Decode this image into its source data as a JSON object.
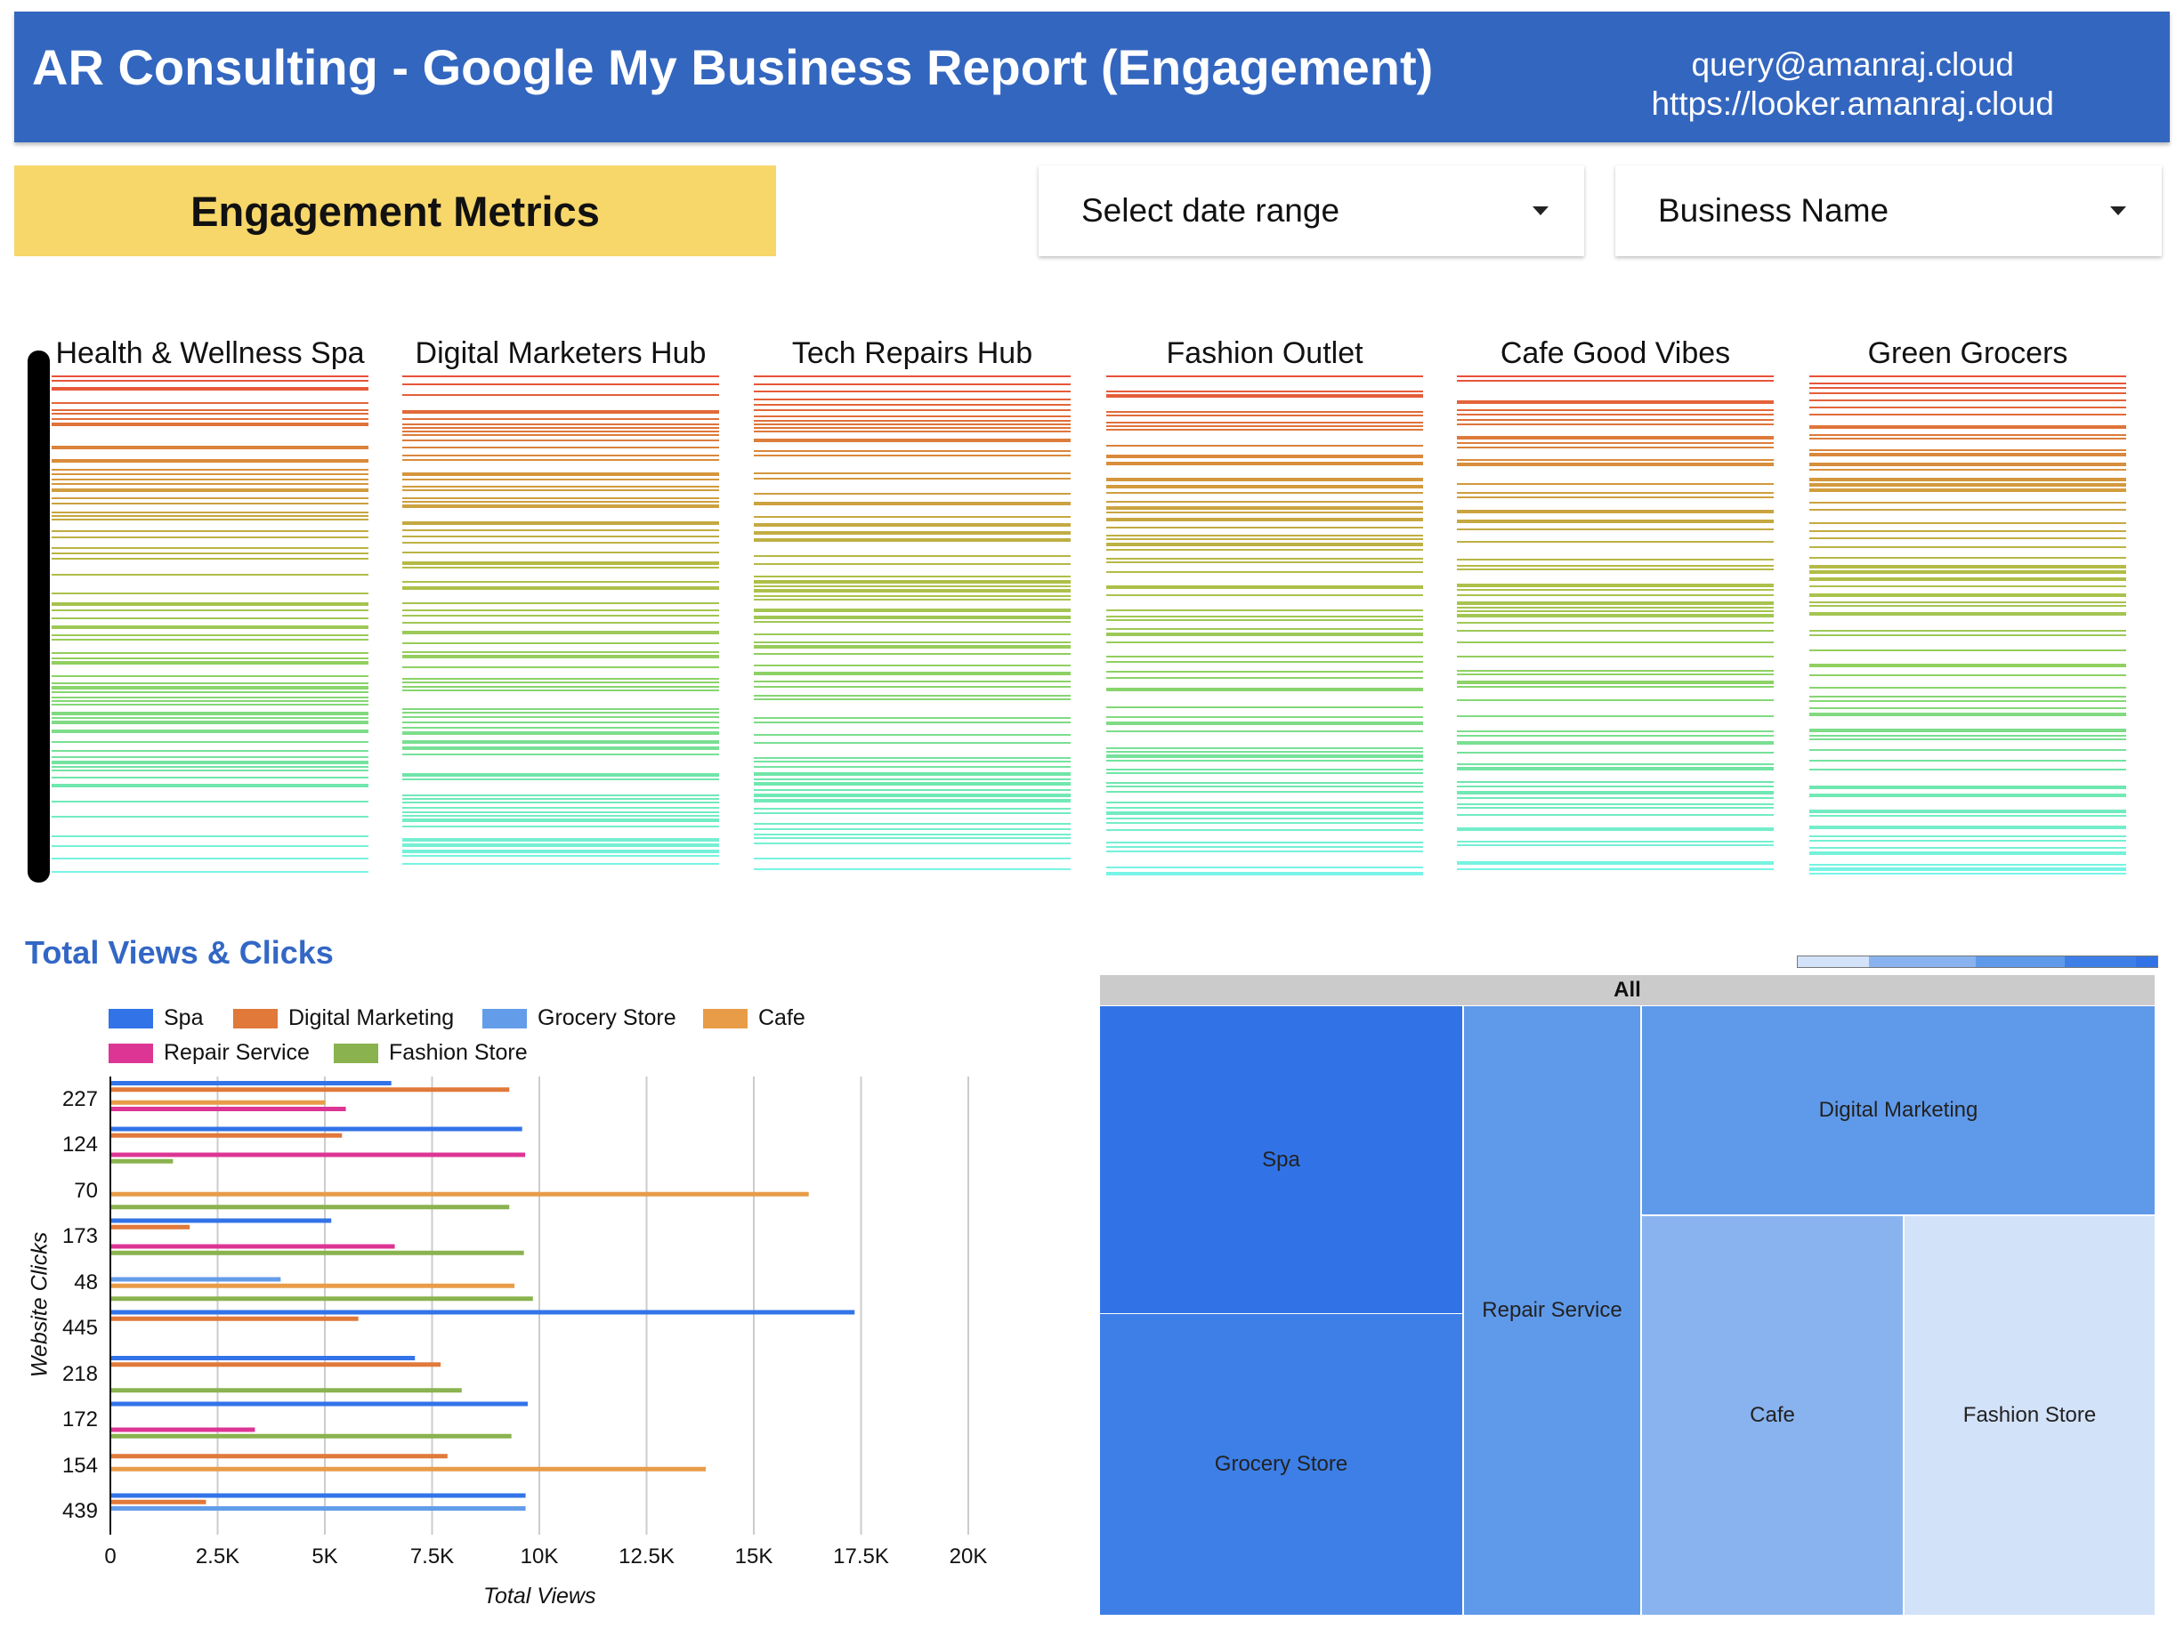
{
  "header": {
    "title": "AR Consulting - Google My Business Report (Engagement)",
    "email": "query@amanraj.cloud",
    "url": "https://looker.amanraj.cloud"
  },
  "section_label": "Engagement Metrics",
  "filters": {
    "date_range": "Select date range",
    "business_name": "Business Name"
  },
  "strip_charts": [
    "Health & Wellness Spa",
    "Digital Marketers Hub",
    "Tech Repairs Hub",
    "Fashion Outlet",
    "Cafe Good Vibes",
    "Green Grocers"
  ],
  "chart_data": [
    {
      "type": "bar",
      "orientation": "horizontal",
      "title": "Total Views & Clicks",
      "xlabel": "Total Views",
      "ylabel": "Website Clicks",
      "xlim": [
        0,
        20000
      ],
      "xticks": [
        "0",
        "2.5K",
        "5K",
        "7.5K",
        "10K",
        "12.5K",
        "15K",
        "17.5K",
        "20K"
      ],
      "grid": true,
      "legend": "top",
      "categories": [
        "227",
        "124",
        "70",
        "173",
        "48",
        "445",
        "218",
        "172",
        "154",
        "439"
      ],
      "series": [
        {
          "name": "Spa",
          "color": "#3373e8",
          "values": [
            6550,
            9600,
            null,
            5150,
            null,
            17350,
            7100,
            9730,
            null,
            9680
          ]
        },
        {
          "name": "Digital Marketing",
          "color": "#e0793a",
          "values": [
            9300,
            5400,
            null,
            1850,
            null,
            5780,
            7700,
            null,
            7860,
            2230
          ]
        },
        {
          "name": "Grocery Store",
          "color": "#639de9",
          "values": [
            null,
            null,
            null,
            null,
            3970,
            null,
            null,
            null,
            null,
            9680
          ]
        },
        {
          "name": "Cafe",
          "color": "#e89c48",
          "values": [
            5010,
            null,
            16280,
            null,
            9420,
            null,
            null,
            null,
            13880,
            null
          ]
        },
        {
          "name": "Repair Service",
          "color": "#dd3594",
          "values": [
            5490,
            9670,
            null,
            6630,
            null,
            null,
            null,
            3370,
            null,
            null
          ]
        },
        {
          "name": "Fashion Store",
          "color": "#8ab24f",
          "values": [
            null,
            1460,
            9300,
            9640,
            9850,
            null,
            8190,
            9350,
            null,
            null
          ]
        }
      ]
    },
    {
      "type": "treemap",
      "root": "All",
      "nodes": [
        {
          "label": "Spa",
          "color": "#3173e6"
        },
        {
          "label": "Grocery Store",
          "color": "#3d7fe7"
        },
        {
          "label": "Repair Service",
          "color": "#5f9aea"
        },
        {
          "label": "Digital Marketing",
          "color": "#5f9aea"
        },
        {
          "label": "Cafe",
          "color": "#88b3ef"
        },
        {
          "label": "Fashion Store",
          "color": "#d2e2f9"
        }
      ]
    }
  ]
}
